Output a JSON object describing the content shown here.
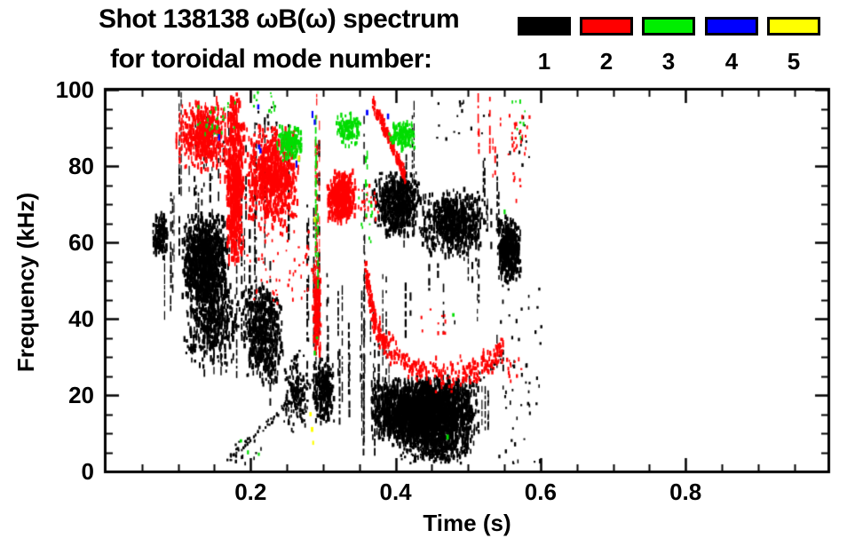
{
  "title": {
    "line1": "Shot 138138 ωB(ω) spectrum",
    "line2": "for toroidal mode number:"
  },
  "legend": {
    "items": [
      {
        "label": "1",
        "color": "#000000"
      },
      {
        "label": "2",
        "color": "#ff0000"
      },
      {
        "label": "3",
        "color": "#00ee00"
      },
      {
        "label": "4",
        "color": "#0000ff"
      },
      {
        "label": "5",
        "color": "#ffff00"
      }
    ]
  },
  "axes": {
    "x": {
      "label": "Time (s)",
      "min": 0,
      "max": 0.997,
      "major_ticks": [
        0.2,
        0.4,
        0.6,
        0.8
      ],
      "major_labels": [
        "0.2",
        "0.4",
        "0.6",
        "0.8"
      ],
      "minor_interval": 0.05
    },
    "y": {
      "label": "Frequency (kHz)",
      "min": 0,
      "max": 100,
      "major_ticks": [
        0,
        20,
        40,
        60,
        80,
        100
      ],
      "major_labels": [
        "0",
        "20",
        "40",
        "60",
        "80",
        "100"
      ],
      "minor_interval": 5
    }
  },
  "chart_data": {
    "type": "scatter",
    "title": "Shot 138138 ωB(ω) spectrum for toroidal mode number 1-5",
    "xlabel": "Time (s)",
    "ylabel": "Frequency (kHz)",
    "xlim": [
      0,
      0.997
    ],
    "ylim": [
      0,
      100
    ],
    "grid": false,
    "legend_position": "top-right",
    "modes": [
      {
        "n": 1,
        "color": "#000000"
      },
      {
        "n": 2,
        "color": "#ff0000"
      },
      {
        "n": 3,
        "color": "#00dd00"
      },
      {
        "n": 4,
        "color": "#0000ff"
      },
      {
        "n": 5,
        "color": "#ffff00"
      }
    ],
    "clusters": [
      {
        "mode": 1,
        "shape": "blob",
        "t": [
          0.063,
          0.085
        ],
        "f": [
          55,
          68
        ],
        "n": 130,
        "dash": [
          3,
          7
        ]
      },
      {
        "mode": 1,
        "shape": "vstreaks",
        "t": [
          0.068,
          0.106
        ],
        "f": [
          40,
          100
        ],
        "streaks": 9,
        "cover": 0.45
      },
      {
        "mode": 1,
        "shape": "blob",
        "t": [
          0.102,
          0.17
        ],
        "f": [
          43,
          68
        ],
        "n": 950,
        "dash": [
          3,
          8
        ]
      },
      {
        "mode": 1,
        "shape": "vstreaks",
        "t": [
          0.1,
          0.175
        ],
        "f": [
          66,
          96
        ],
        "streaks": 14,
        "cover": 0.3
      },
      {
        "mode": 1,
        "shape": "blob",
        "t": [
          0.105,
          0.185
        ],
        "f": [
          26,
          54
        ],
        "n": 480,
        "dash": [
          3,
          8
        ]
      },
      {
        "mode": 1,
        "shape": "blob",
        "t": [
          0.185,
          0.245
        ],
        "f": [
          22,
          50
        ],
        "n": 520,
        "dash": [
          3,
          8
        ]
      },
      {
        "mode": 1,
        "shape": "blob",
        "t": [
          0.245,
          0.278
        ],
        "f": [
          10,
          32
        ],
        "n": 170,
        "dash": [
          2,
          6
        ]
      },
      {
        "mode": 1,
        "shape": "vstreaks",
        "t": [
          0.128,
          0.31
        ],
        "f": [
          15,
          95
        ],
        "streaks": 22,
        "cover": 0.5
      },
      {
        "mode": 1,
        "shape": "vstreaks",
        "t": [
          0.3,
          0.36
        ],
        "f": [
          3,
          55
        ],
        "streaks": 10,
        "cover": 0.5
      },
      {
        "mode": 1,
        "shape": "vstreaks",
        "t": [
          0.36,
          0.4
        ],
        "f": [
          3,
          55
        ],
        "streaks": 8,
        "cover": 0.55
      },
      {
        "mode": 1,
        "shape": "vstreaks",
        "t": [
          0.4,
          0.49
        ],
        "f": [
          25,
          56
        ],
        "streaks": 6,
        "cover": 0.45
      },
      {
        "mode": 1,
        "shape": "blob",
        "t": [
          0.283,
          0.316
        ],
        "f": [
          12,
          30
        ],
        "n": 250,
        "dash": [
          3,
          7
        ]
      },
      {
        "mode": 1,
        "shape": "diagonal",
        "from": [
          0.165,
          2.5
        ],
        "to": [
          0.297,
          26
        ],
        "n": 85,
        "jitter": 1.2,
        "dash": [
          2,
          4
        ]
      },
      {
        "mode": 1,
        "shape": "diagonal",
        "from": [
          0.405,
          4
        ],
        "to": [
          0.545,
          30
        ],
        "n": 95,
        "jitter": 1.5,
        "dash": [
          2,
          4
        ]
      },
      {
        "mode": 1,
        "shape": "blob",
        "t": [
          0.36,
          0.515
        ],
        "f": [
          6,
          25
        ],
        "n": 2500,
        "dash": [
          3,
          9
        ]
      },
      {
        "mode": 1,
        "shape": "blob",
        "t": [
          0.41,
          0.505
        ],
        "f": [
          2,
          9
        ],
        "n": 280,
        "dash": [
          2,
          6
        ]
      },
      {
        "mode": 1,
        "shape": "vstreaks",
        "t": [
          0.515,
          0.56
        ],
        "f": [
          8,
          40
        ],
        "streaks": 6,
        "cover": 0.4
      },
      {
        "mode": 1,
        "shape": "blob",
        "t": [
          0.365,
          0.435
        ],
        "f": [
          61,
          79
        ],
        "n": 520,
        "dash": [
          3,
          8
        ]
      },
      {
        "mode": 1,
        "shape": "blob",
        "t": [
          0.43,
          0.525
        ],
        "f": [
          56,
          74
        ],
        "n": 620,
        "dash": [
          3,
          8
        ]
      },
      {
        "mode": 1,
        "shape": "vstreaks",
        "t": [
          0.4,
          0.425
        ],
        "f": [
          58,
          100
        ],
        "streaks": 6,
        "cover": 0.55
      },
      {
        "mode": 1,
        "shape": "vstreaks",
        "t": [
          0.49,
          0.52
        ],
        "f": [
          38,
          74
        ],
        "streaks": 7,
        "cover": 0.5
      },
      {
        "mode": 1,
        "shape": "vstreaks",
        "t": [
          0.52,
          0.548
        ],
        "f": [
          55,
          84
        ],
        "streaks": 6,
        "cover": 0.35
      },
      {
        "mode": 1,
        "shape": "blob",
        "t": [
          0.538,
          0.572
        ],
        "f": [
          49,
          67
        ],
        "n": 430,
        "dash": [
          3,
          8
        ]
      },
      {
        "mode": 1,
        "shape": "spray",
        "t": [
          0.54,
          0.6
        ],
        "f": [
          2,
          50
        ],
        "n": 50
      },
      {
        "mode": 1,
        "shape": "spray",
        "t": [
          0.455,
          0.53
        ],
        "f": [
          86,
          97
        ],
        "n": 16
      },
      {
        "mode": 1,
        "shape": "spray",
        "t": [
          0.205,
          0.235
        ],
        "f": [
          87,
          96
        ],
        "n": 16
      },
      {
        "mode": 1,
        "shape": "spray",
        "t": [
          0.17,
          0.215
        ],
        "f": [
          2,
          8
        ],
        "n": 14
      },
      {
        "mode": 1,
        "shape": "vstreaks",
        "t": [
          0.345,
          0.36
        ],
        "f": [
          5,
          100
        ],
        "streaks": 3,
        "cover": 0.8
      },
      {
        "mode": 1,
        "shape": "spray",
        "t": [
          0.555,
          0.585
        ],
        "f": [
          80,
          95
        ],
        "n": 12
      },
      {
        "mode": 2,
        "shape": "vstreaks",
        "t": [
          0.095,
          0.168
        ],
        "f": [
          75,
          99
        ],
        "streaks": 16,
        "cover": 0.4
      },
      {
        "mode": 2,
        "shape": "blob",
        "t": [
          0.1,
          0.165
        ],
        "f": [
          78,
          97
        ],
        "n": 420,
        "dash": [
          3,
          7
        ]
      },
      {
        "mode": 2,
        "shape": "blob",
        "t": [
          0.165,
          0.19
        ],
        "f": [
          52,
          100
        ],
        "n": 560,
        "dash": [
          4,
          10
        ]
      },
      {
        "mode": 2,
        "shape": "blob",
        "t": [
          0.19,
          0.268
        ],
        "f": [
          63,
          91
        ],
        "n": 820,
        "dash": [
          3,
          8
        ]
      },
      {
        "mode": 2,
        "shape": "spray",
        "t": [
          0.19,
          0.285
        ],
        "f": [
          44,
          63
        ],
        "n": 55
      },
      {
        "mode": 2,
        "shape": "vstreaks",
        "t": [
          0.283,
          0.296
        ],
        "f": [
          26,
          100
        ],
        "streaks": 4,
        "cover": 0.7
      },
      {
        "mode": 2,
        "shape": "blob",
        "t": [
          0.284,
          0.296
        ],
        "f": [
          28,
          55
        ],
        "n": 150,
        "dash": [
          3,
          7
        ]
      },
      {
        "mode": 2,
        "shape": "blob",
        "t": [
          0.303,
          0.345
        ],
        "f": [
          65,
          79
        ],
        "n": 430,
        "dash": [
          3,
          8
        ]
      },
      {
        "mode": 2,
        "shape": "spray",
        "t": [
          0.345,
          0.375
        ],
        "f": [
          66,
          76
        ],
        "n": 24
      },
      {
        "mode": 2,
        "shape": "diagonal",
        "from": [
          0.367,
          97
        ],
        "to": [
          0.413,
          77
        ],
        "n": 170,
        "jitter": 2.5,
        "dash": [
          3,
          6
        ]
      },
      {
        "mode": 2,
        "shape": "curve",
        "path": [
          [
            0.357,
            54
          ],
          [
            0.365,
            44
          ],
          [
            0.372,
            38
          ],
          [
            0.385,
            33
          ],
          [
            0.41,
            29
          ],
          [
            0.44,
            26.5
          ],
          [
            0.47,
            24.5
          ],
          [
            0.5,
            26
          ],
          [
            0.525,
            28.5
          ],
          [
            0.547,
            33
          ]
        ],
        "n": 430,
        "thick": 3.5,
        "dash": [
          3,
          6
        ]
      },
      {
        "mode": 2,
        "shape": "vstreaks",
        "t": [
          0.512,
          0.545
        ],
        "f": [
          77,
          100
        ],
        "streaks": 6,
        "cover": 0.5
      },
      {
        "mode": 2,
        "shape": "spray",
        "t": [
          0.553,
          0.585
        ],
        "f": [
          83,
          96
        ],
        "n": 22
      },
      {
        "mode": 2,
        "shape": "spray",
        "t": [
          0.43,
          0.47
        ],
        "f": [
          36,
          45
        ],
        "n": 10
      },
      {
        "mode": 2,
        "shape": "spray",
        "t": [
          0.55,
          0.582
        ],
        "f": [
          23,
          30
        ],
        "n": 12
      },
      {
        "mode": 2,
        "shape": "spray",
        "t": [
          0.56,
          0.578
        ],
        "f": [
          70,
          78
        ],
        "n": 6
      },
      {
        "mode": 3,
        "shape": "spray",
        "t": [
          0.125,
          0.18
        ],
        "f": [
          88,
          97
        ],
        "n": 25
      },
      {
        "mode": 3,
        "shape": "blob",
        "t": [
          0.235,
          0.272
        ],
        "f": [
          81,
          91
        ],
        "n": 160,
        "dash": [
          3,
          6
        ]
      },
      {
        "mode": 3,
        "shape": "spray",
        "t": [
          0.203,
          0.232
        ],
        "f": [
          94,
          100
        ],
        "n": 14
      },
      {
        "mode": 3,
        "shape": "vstreaks",
        "t": [
          0.284,
          0.293
        ],
        "f": [
          45,
          100
        ],
        "streaks": 3,
        "cover": 0.6
      },
      {
        "mode": 3,
        "shape": "blob",
        "t": [
          0.315,
          0.352
        ],
        "f": [
          85,
          94
        ],
        "n": 140,
        "dash": [
          3,
          6
        ]
      },
      {
        "mode": 3,
        "shape": "vstreaks",
        "t": [
          0.354,
          0.363
        ],
        "f": [
          74,
          86
        ],
        "streaks": 2,
        "cover": 0.8
      },
      {
        "mode": 3,
        "shape": "spray",
        "t": [
          0.348,
          0.368
        ],
        "f": [
          58,
          73
        ],
        "n": 12
      },
      {
        "mode": 3,
        "shape": "blob",
        "t": [
          0.388,
          0.428
        ],
        "f": [
          84,
          92
        ],
        "n": 130,
        "dash": [
          3,
          6
        ]
      },
      {
        "mode": 3,
        "shape": "spray",
        "t": [
          0.558,
          0.578
        ],
        "f": [
          87,
          98
        ],
        "n": 8
      },
      {
        "mode": 3,
        "shape": "dots",
        "points": [
          [
            0.185,
            8
          ],
          [
            0.195,
            5
          ],
          [
            0.21,
            4.5
          ],
          [
            0.47,
            9
          ],
          [
            0.478,
            41
          ],
          [
            0.549,
            68
          ],
          [
            0.29,
            35
          ],
          [
            0.287,
            31
          ]
        ],
        "dash": [
          3,
          6
        ]
      },
      {
        "mode": 4,
        "shape": "dots",
        "points": [
          [
            0.209,
            95.5
          ],
          [
            0.21,
            85
          ],
          [
            0.212,
            84
          ],
          [
            0.262,
            80.5
          ],
          [
            0.284,
            93.5
          ],
          [
            0.287,
            91.5
          ],
          [
            0.359,
            94
          ],
          [
            0.388,
            93
          ],
          [
            0.155,
            87.5
          ]
        ],
        "dash": [
          5,
          9
        ]
      },
      {
        "mode": 5,
        "shape": "dots",
        "points": [
          [
            0.265,
            82
          ],
          [
            0.281,
            15
          ],
          [
            0.283,
            11
          ],
          [
            0.285,
            7.5
          ],
          [
            0.287,
            66
          ]
        ],
        "dash": [
          4,
          7
        ]
      }
    ]
  }
}
